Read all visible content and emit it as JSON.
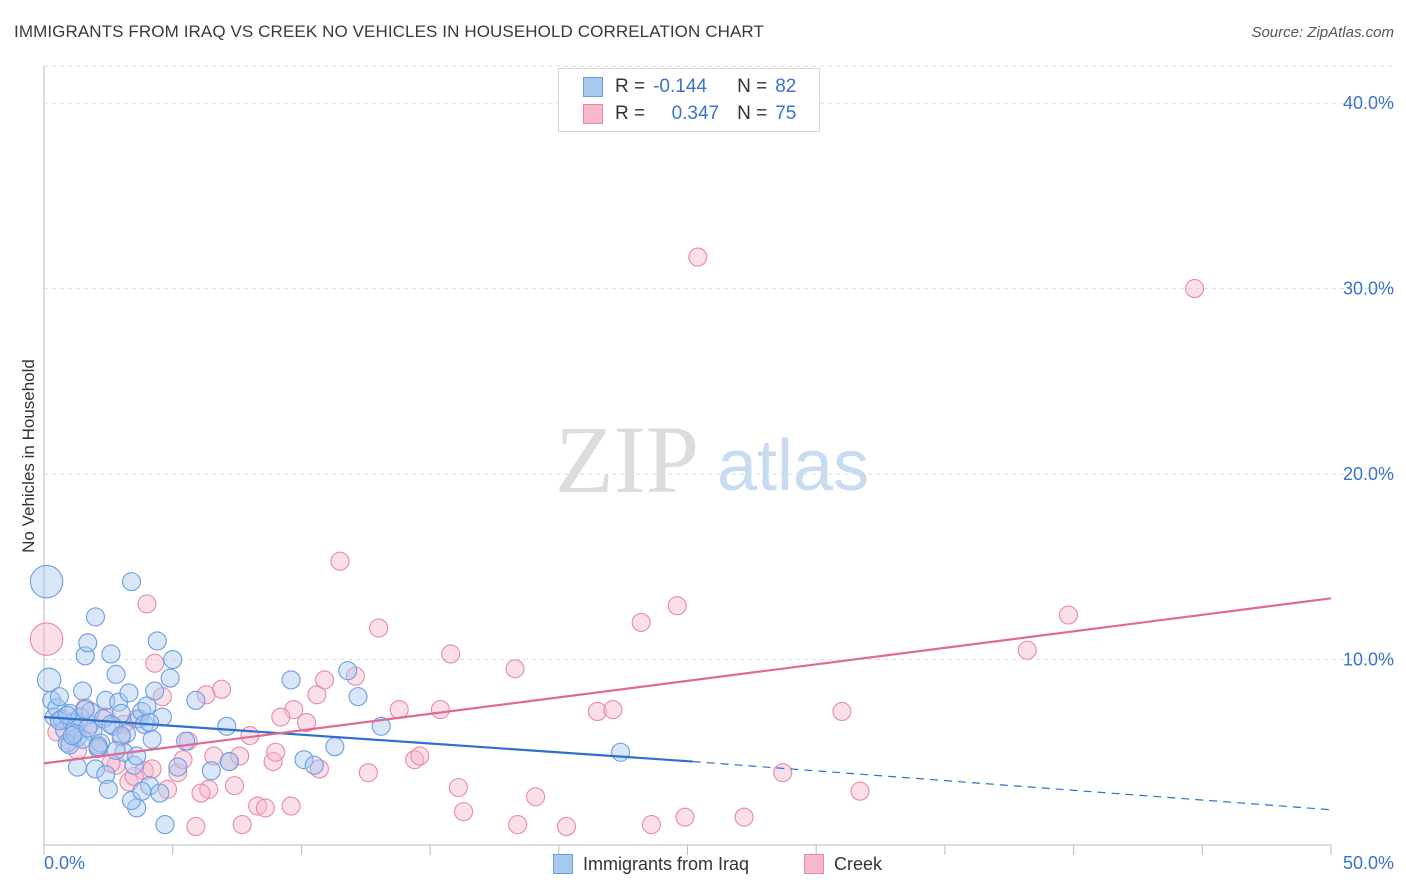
{
  "title": "IMMIGRANTS FROM IRAQ VS CREEK NO VEHICLES IN HOUSEHOLD CORRELATION CHART",
  "source": "Source: ZipAtlas.com",
  "watermark": {
    "zip": "ZIP",
    "atlas": "atlas"
  },
  "legend": {
    "rows": [
      {
        "r_label": "R =",
        "r_value": "-0.144",
        "n_label": "N =",
        "n_value": "82",
        "color": "#a8c8f0",
        "border": "#6a9ee0"
      },
      {
        "r_label": "R =",
        "r_value": "0.347",
        "n_label": "N =",
        "n_value": "75",
        "color": "#f7b8cc",
        "border": "#e889a8"
      }
    ]
  },
  "bottom_legend": [
    {
      "label": "Immigrants from Iraq",
      "color": "#a8c8f0",
      "border": "#6a9ee0"
    },
    {
      "label": "Creek",
      "color": "#f7b8cc",
      "border": "#e889a8"
    }
  ],
  "chart_data": {
    "type": "scatter",
    "title": "IMMIGRANTS FROM IRAQ VS CREEK NO VEHICLES IN HOUSEHOLD CORRELATION CHART",
    "xlabel": "",
    "ylabel": "No Vehicles in Household",
    "xlim": [
      0,
      50
    ],
    "ylim": [
      0,
      42
    ],
    "x_tick_labels": [
      "0.0%",
      "50.0%"
    ],
    "y_ticks": [
      10,
      20,
      30,
      40
    ],
    "y_tick_labels": [
      "10.0%",
      "20.0%",
      "30.0%",
      "40.0%"
    ],
    "grid": true,
    "legend_position": "top-center",
    "series": [
      {
        "name": "Immigrants from Iraq",
        "color": "#6a9ee0",
        "fill": "#a8c8f0",
        "trend_color": "#2f6fce",
        "trend": {
          "x_start": 0,
          "y_start": 6.9,
          "x_end": 25.2,
          "y_end": 4.5,
          "dash_x_end": 50,
          "dash_y_end": 1.9
        },
        "points": [
          [
            0.1,
            14.2,
            1.8
          ],
          [
            0.2,
            8.9,
            1.3
          ],
          [
            0.3,
            7.8,
            1.0
          ],
          [
            0.4,
            6.9,
            1.0
          ],
          [
            0.5,
            7.4,
            1.0
          ],
          [
            0.6,
            8.0,
            1.0
          ],
          [
            0.7,
            6.8,
            1.0
          ],
          [
            0.8,
            6.2,
            1.0
          ],
          [
            0.9,
            5.5,
            1.0
          ],
          [
            1.0,
            7.1,
            1.0
          ],
          [
            1.1,
            6.6,
            1.0
          ],
          [
            1.2,
            6.3,
            1.0
          ],
          [
            1.3,
            5.8,
            1.0
          ],
          [
            1.4,
            6.9,
            1.0
          ],
          [
            1.3,
            4.2,
            1.0
          ],
          [
            1.5,
            8.3,
            1.0
          ],
          [
            1.6,
            10.2,
            1.0
          ],
          [
            1.7,
            10.9,
            1.0
          ],
          [
            1.8,
            7.2,
            1.0
          ],
          [
            1.9,
            6.1,
            1.0
          ],
          [
            2.0,
            4.1,
            1.0
          ],
          [
            2.0,
            12.3,
            1.0
          ],
          [
            2.1,
            5.2,
            1.0
          ],
          [
            2.2,
            5.5,
            1.0
          ],
          [
            2.3,
            6.8,
            1.0
          ],
          [
            2.4,
            7.8,
            1.0
          ],
          [
            2.4,
            3.8,
            1.0
          ],
          [
            2.5,
            3.0,
            1.0
          ],
          [
            2.6,
            10.3,
            1.0
          ],
          [
            2.7,
            6.4,
            1.0
          ],
          [
            2.8,
            9.2,
            1.0
          ],
          [
            2.9,
            7.7,
            1.0
          ],
          [
            3.0,
            7.1,
            1.0
          ],
          [
            3.1,
            5.0,
            1.0
          ],
          [
            3.2,
            6.0,
            1.0
          ],
          [
            3.3,
            8.2,
            1.0
          ],
          [
            3.4,
            14.2,
            1.0
          ],
          [
            3.5,
            4.3,
            1.0
          ],
          [
            3.6,
            2.0,
            1.0
          ],
          [
            3.7,
            6.8,
            1.0
          ],
          [
            3.8,
            7.2,
            1.0
          ],
          [
            3.9,
            6.5,
            1.0
          ],
          [
            4.0,
            7.5,
            1.0
          ],
          [
            4.1,
            3.2,
            1.0
          ],
          [
            4.2,
            5.7,
            1.0
          ],
          [
            4.3,
            8.3,
            1.0
          ],
          [
            4.4,
            11.0,
            1.0
          ],
          [
            4.5,
            2.8,
            1.0
          ],
          [
            4.6,
            6.9,
            1.0
          ],
          [
            4.7,
            1.1,
            1.0
          ],
          [
            4.9,
            9.0,
            1.0
          ],
          [
            5.0,
            10.0,
            1.0
          ],
          [
            5.2,
            4.2,
            1.0
          ],
          [
            5.5,
            5.6,
            1.0
          ],
          [
            5.9,
            7.8,
            1.0
          ],
          [
            6.5,
            4.0,
            1.0
          ],
          [
            7.1,
            6.4,
            1.0
          ],
          [
            7.2,
            4.5,
            1.0
          ],
          [
            9.6,
            8.9,
            1.0
          ],
          [
            10.1,
            4.6,
            1.0
          ],
          [
            10.5,
            4.3,
            1.0
          ],
          [
            11.3,
            5.3,
            1.0
          ],
          [
            11.8,
            9.4,
            1.0
          ],
          [
            12.2,
            8.0,
            1.0
          ],
          [
            13.1,
            6.4,
            1.0
          ],
          [
            22.4,
            5.0,
            1.0
          ],
          [
            0.6,
            6.7,
            1.0
          ],
          [
            1.0,
            5.4,
            1.0
          ],
          [
            1.2,
            6.0,
            1.0
          ],
          [
            1.5,
            5.7,
            1.0
          ],
          [
            1.7,
            6.3,
            1.0
          ],
          [
            2.1,
            5.3,
            1.0
          ],
          [
            2.6,
            6.5,
            1.0
          ],
          [
            3.0,
            5.9,
            1.0
          ],
          [
            3.4,
            2.4,
            1.0
          ],
          [
            3.8,
            2.9,
            1.0
          ],
          [
            4.1,
            6.6,
            1.0
          ],
          [
            0.9,
            7.0,
            1.0
          ],
          [
            1.1,
            5.9,
            1.0
          ],
          [
            1.6,
            7.3,
            1.0
          ],
          [
            3.6,
            4.8,
            1.0
          ],
          [
            2.8,
            5.1,
            1.0
          ]
        ]
      },
      {
        "name": "Creek",
        "color": "#e889a8",
        "fill": "#f7b8cc",
        "trend_color": "#e06a93",
        "trend": {
          "x_start": 0,
          "y_start": 4.4,
          "x_end": 50,
          "y_end": 13.3
        },
        "points": [
          [
            0.1,
            11.1,
            1.8
          ],
          [
            0.5,
            6.1,
            1.0
          ],
          [
            1.0,
            5.6,
            1.0
          ],
          [
            1.3,
            5.1,
            1.0
          ],
          [
            1.6,
            7.4,
            1.0
          ],
          [
            2.1,
            5.4,
            1.0
          ],
          [
            2.4,
            6.9,
            1.0
          ],
          [
            2.8,
            4.3,
            1.0
          ],
          [
            3.1,
            6.5,
            1.0
          ],
          [
            3.3,
            3.4,
            1.0
          ],
          [
            3.6,
            6.8,
            1.0
          ],
          [
            3.9,
            4.0,
            1.0
          ],
          [
            4.0,
            13.0,
            1.0
          ],
          [
            4.2,
            4.1,
            1.0
          ],
          [
            4.3,
            9.8,
            1.0
          ],
          [
            4.6,
            8.0,
            1.0
          ],
          [
            5.2,
            3.9,
            1.0
          ],
          [
            5.6,
            5.6,
            1.0
          ],
          [
            5.9,
            1.0,
            1.0
          ],
          [
            6.3,
            8.1,
            1.0
          ],
          [
            6.4,
            3.0,
            1.0
          ],
          [
            6.6,
            4.8,
            1.0
          ],
          [
            6.9,
            8.4,
            1.0
          ],
          [
            7.2,
            4.5,
            1.0
          ],
          [
            7.4,
            3.2,
            1.0
          ],
          [
            7.6,
            4.8,
            1.0
          ],
          [
            7.7,
            1.1,
            1.0
          ],
          [
            8.0,
            5.9,
            1.0
          ],
          [
            8.3,
            2.1,
            1.0
          ],
          [
            8.6,
            2.0,
            1.0
          ],
          [
            8.9,
            4.5,
            1.0
          ],
          [
            9.0,
            5.0,
            1.0
          ],
          [
            9.6,
            2.1,
            1.0
          ],
          [
            9.7,
            7.3,
            1.0
          ],
          [
            10.2,
            6.6,
            1.0
          ],
          [
            10.6,
            8.1,
            1.0
          ],
          [
            10.7,
            4.1,
            1.0
          ],
          [
            10.9,
            8.9,
            1.0
          ],
          [
            11.5,
            15.3,
            1.0
          ],
          [
            12.1,
            9.1,
            1.0
          ],
          [
            12.6,
            3.9,
            1.0
          ],
          [
            13.0,
            11.7,
            1.0
          ],
          [
            13.8,
            7.3,
            1.0
          ],
          [
            14.4,
            4.6,
            1.0
          ],
          [
            14.6,
            4.8,
            1.0
          ],
          [
            15.4,
            7.3,
            1.0
          ],
          [
            15.8,
            10.3,
            1.0
          ],
          [
            16.1,
            3.1,
            1.0
          ],
          [
            16.3,
            1.8,
            1.0
          ],
          [
            18.3,
            9.5,
            1.0
          ],
          [
            18.4,
            1.1,
            1.0
          ],
          [
            19.1,
            2.6,
            1.0
          ],
          [
            20.3,
            1.0,
            1.0
          ],
          [
            21.5,
            7.2,
            1.0
          ],
          [
            22.1,
            7.3,
            1.0
          ],
          [
            23.2,
            12.0,
            1.0
          ],
          [
            23.6,
            1.1,
            1.0
          ],
          [
            24.6,
            12.9,
            1.0
          ],
          [
            24.9,
            1.5,
            1.0
          ],
          [
            25.4,
            31.7,
            1.0
          ],
          [
            27.2,
            1.5,
            1.0
          ],
          [
            28.7,
            3.9,
            1.0
          ],
          [
            31.0,
            7.2,
            1.0
          ],
          [
            31.7,
            2.9,
            1.0
          ],
          [
            38.2,
            10.5,
            1.0
          ],
          [
            39.8,
            12.4,
            1.0
          ],
          [
            44.7,
            30.0,
            1.0
          ],
          [
            1.8,
            6.5,
            1.0
          ],
          [
            2.6,
            4.4,
            1.0
          ],
          [
            3.0,
            5.8,
            1.0
          ],
          [
            3.5,
            3.7,
            1.0
          ],
          [
            4.8,
            3.0,
            1.0
          ],
          [
            5.4,
            4.6,
            1.0
          ],
          [
            6.1,
            2.8,
            1.0
          ],
          [
            9.2,
            6.9,
            1.0
          ]
        ]
      }
    ]
  }
}
